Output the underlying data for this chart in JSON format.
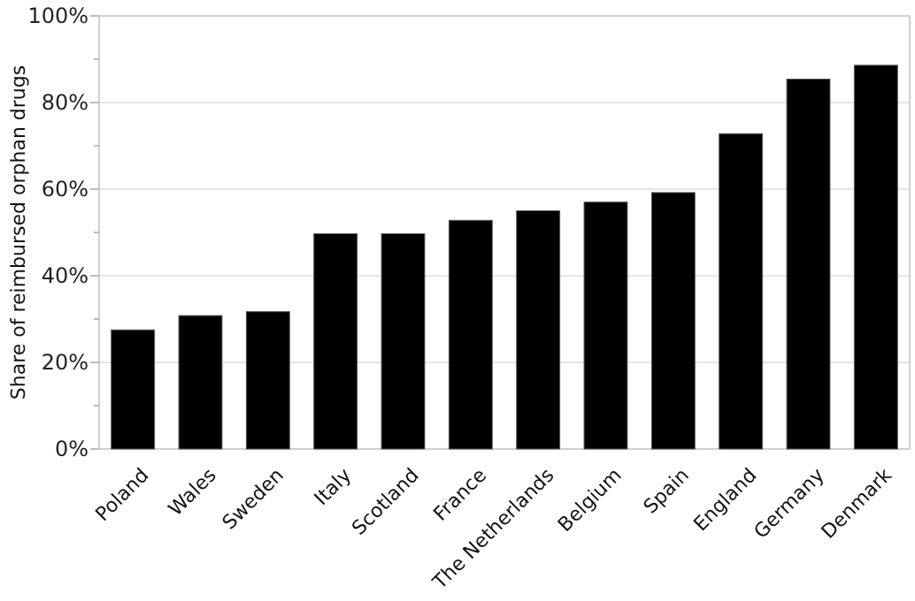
{
  "chart_data": {
    "type": "bar",
    "ylabel": "Share of reimbursed orphan drugs",
    "categories": [
      "Poland",
      "Wales",
      "Sweden",
      "Italy",
      "Scotland",
      "France",
      "The Netherlands",
      "Belgium",
      "Spain",
      "England",
      "Germany",
      "Denmark"
    ],
    "values": [
      27.5,
      30.8,
      31.7,
      49.7,
      49.7,
      52.8,
      55,
      57,
      59.2,
      72.8,
      85.4,
      88.6
    ],
    "color": "#000000",
    "ylim": [
      0,
      100
    ],
    "yticks": [
      {
        "value": 0,
        "label": "0%"
      },
      {
        "value": 10,
        "label": null
      },
      {
        "value": 20,
        "label": "20%"
      },
      {
        "value": 30,
        "label": null
      },
      {
        "value": 40,
        "label": "40%"
      },
      {
        "value": 50,
        "label": null
      },
      {
        "value": 60,
        "label": "60%"
      },
      {
        "value": 70,
        "label": null
      },
      {
        "value": 80,
        "label": "80%"
      },
      {
        "value": 90,
        "label": null
      },
      {
        "value": 100,
        "label": "100%"
      }
    ],
    "grid": "y"
  }
}
